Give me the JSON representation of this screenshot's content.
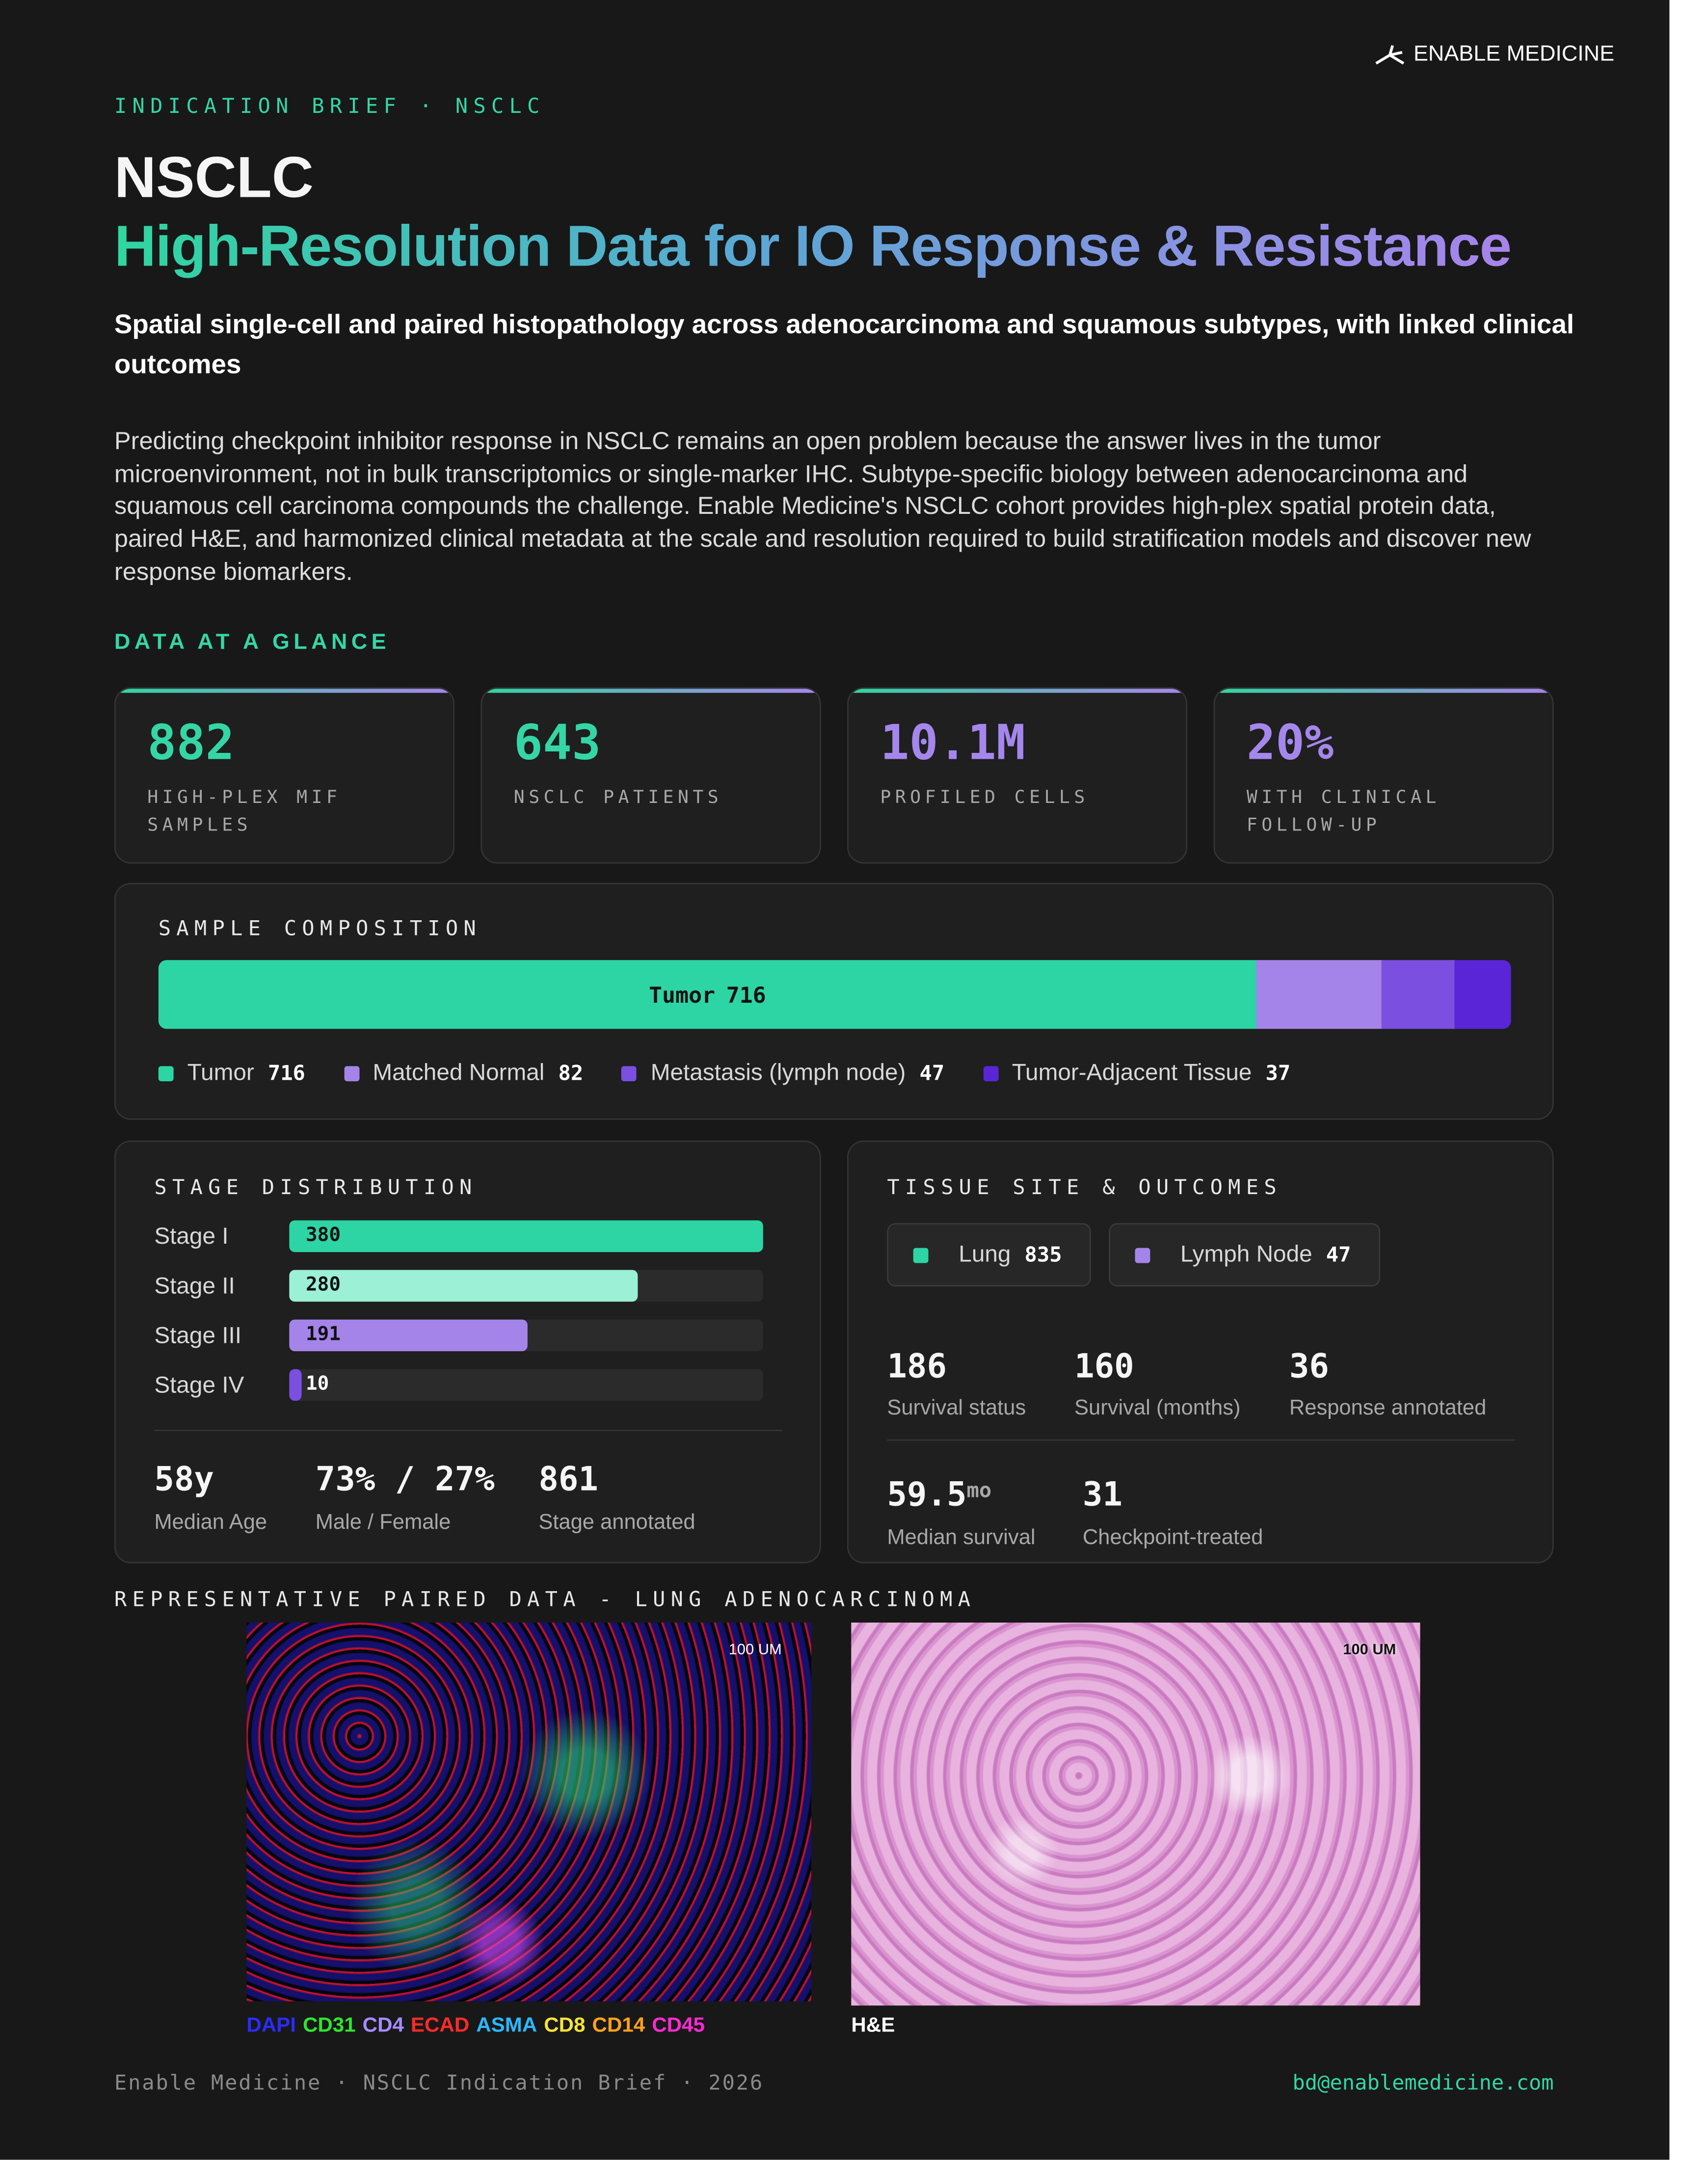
{
  "brand": "ENABLE MEDICINE",
  "header": {
    "eyebrow": "INDICATION BRIEF · NSCLC",
    "title": "NSCLC",
    "headline": "High-Resolution Data for IO Response & Resistance",
    "subtitle": "Spatial single-cell and paired histopathology across adenocarcinoma and squamous subtypes, with linked clinical outcomes",
    "intro": "Predicting checkpoint inhibitor response in NSCLC remains an open problem because the answer lives in the tumor microenvironment, not in bulk transcriptomics or single-marker IHC. Subtype-specific biology between adenocarcinoma and squamous cell carcinoma compounds the challenge. Enable Medicine's NSCLC cohort provides high-plex spatial protein data, paired H&E, and harmonized clinical metadata at the scale and resolution required to build stratification models and discover new response biomarkers."
  },
  "glance": {
    "heading": "DATA AT A GLANCE",
    "cards": [
      {
        "value": "882",
        "label": "HIGH-PLEX MIF SAMPLES",
        "color": "#35d6a6"
      },
      {
        "value": "643",
        "label": "NSCLC PATIENTS",
        "color": "#35d6a6"
      },
      {
        "value": "10.1M",
        "label": "PROFILED CELLS",
        "color": "#a586ec"
      },
      {
        "value": "20%",
        "label": "WITH CLINICAL FOLLOW-UP",
        "color": "#a586ec"
      }
    ]
  },
  "composition": {
    "heading": "SAMPLE COMPOSITION",
    "segments": [
      {
        "name": "Tumor",
        "value": 716,
        "color": "#2dd4a4"
      },
      {
        "name": "Matched Normal",
        "value": 82,
        "color": "#a584ea"
      },
      {
        "name": "Metastasis (lymph node)",
        "value": 47,
        "color": "#7b4fe0"
      },
      {
        "name": "Tumor-Adjacent Tissue",
        "value": 37,
        "color": "#5a25d6"
      }
    ]
  },
  "stage": {
    "heading": "STAGE DISTRIBUTION",
    "rows": [
      {
        "name": "Stage I",
        "value": 380,
        "color": "#2dd4a4"
      },
      {
        "name": "Stage II",
        "value": 280,
        "color": "#9bf0d6"
      },
      {
        "name": "Stage III",
        "value": 191,
        "color": "#a584ea"
      },
      {
        "name": "Stage IV",
        "value": 10,
        "color": "#7b4fe0"
      }
    ],
    "stats": [
      {
        "value": "58y",
        "label": "Median Age"
      },
      {
        "value": "73% / 27%",
        "label": "Male / Female"
      },
      {
        "value": "861",
        "label": "Stage annotated"
      }
    ]
  },
  "tissue": {
    "heading": "TISSUE SITE & OUTCOMES",
    "sites": [
      {
        "name": "Lung",
        "value": 835,
        "color": "#2dd4a4"
      },
      {
        "name": "Lymph Node",
        "value": 47,
        "color": "#a584ea"
      }
    ],
    "stats": [
      {
        "value": "186",
        "label": "Survival status"
      },
      {
        "value": "160",
        "label": "Survival (months)"
      },
      {
        "value": "36",
        "label": "Response annotated"
      }
    ],
    "survival": [
      {
        "value": "59.5",
        "unit": "mo",
        "label": "Median survival"
      },
      {
        "value": "31",
        "label": "Checkpoint-treated"
      }
    ]
  },
  "paired": {
    "heading": "REPRESENTATIVE PAIRED DATA - LUNG ADENOCARCINOMA",
    "mif": {
      "scale": "100 UM",
      "channels": [
        {
          "name": "DAPI",
          "color": "#2b2bff"
        },
        {
          "name": "CD31",
          "color": "#2ee62e"
        },
        {
          "name": "CD4",
          "color": "#a58cff"
        },
        {
          "name": "ECAD",
          "color": "#ff2a2a"
        },
        {
          "name": "ASMA",
          "color": "#2ab8ff"
        },
        {
          "name": "CD8",
          "color": "#f5e33a"
        },
        {
          "name": "CD14",
          "color": "#ffa21a"
        },
        {
          "name": "CD45",
          "color": "#ff2ad4"
        }
      ]
    },
    "he": {
      "scale": "100 UM",
      "caption": "H&E"
    }
  },
  "footer": {
    "left": "Enable Medicine · NSCLC Indication Brief · 2026",
    "right": "bd@enablemedicine.com"
  }
}
